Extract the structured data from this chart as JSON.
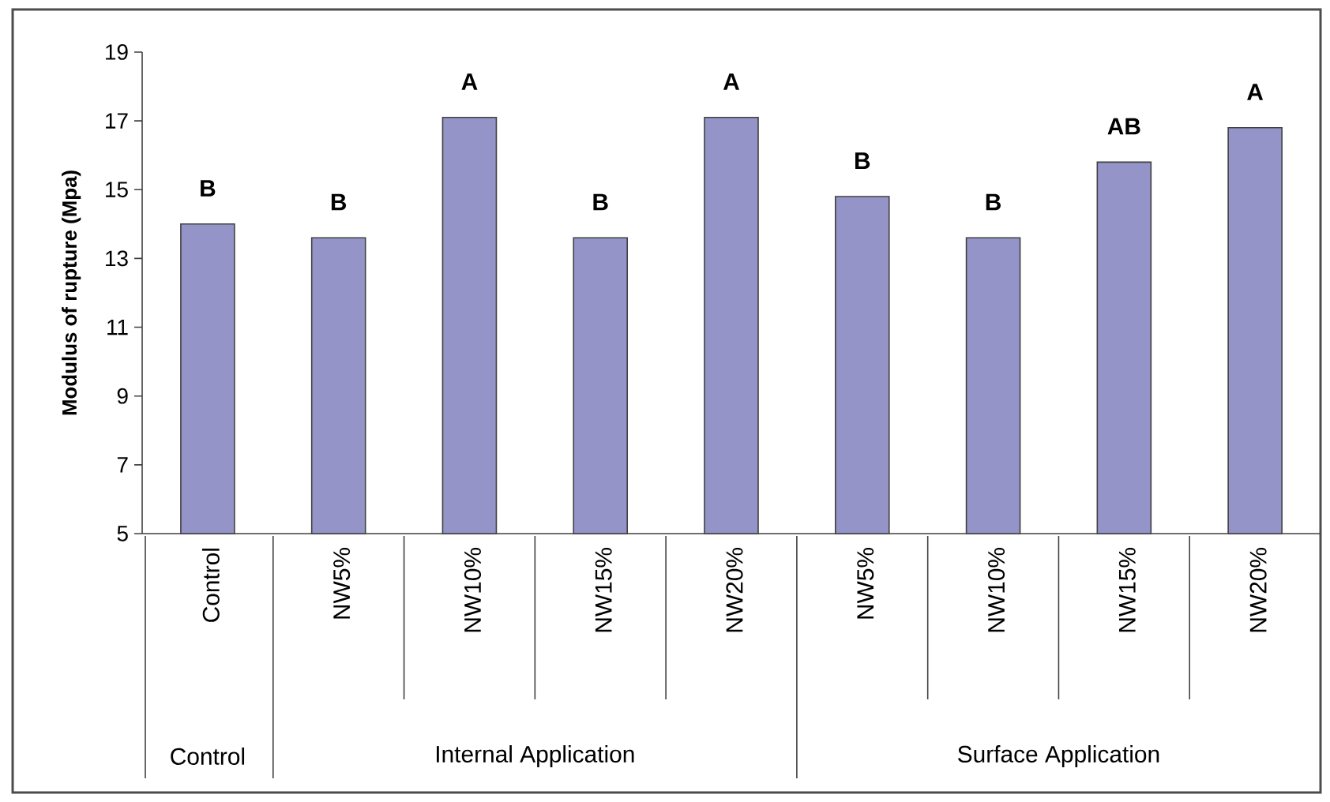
{
  "chart_data": {
    "type": "bar",
    "ylabel": "Modulus of rupture (Mpa)",
    "categories": [
      "Control",
      "NW5%",
      "NW10%",
      "NW15%",
      "NW20%",
      "NW5%",
      "NW10%",
      "NW15%",
      "NW20%"
    ],
    "values": [
      14.0,
      13.6,
      17.1,
      13.6,
      17.1,
      14.8,
      13.6,
      15.8,
      16.8
    ],
    "value_labels": [
      "B",
      "B",
      "A",
      "B",
      "A",
      "B",
      "B",
      "AB",
      "A"
    ],
    "color": "#9494c8",
    "ylim": [
      5,
      19
    ],
    "yticks": [
      5,
      7,
      9,
      11,
      13,
      15,
      17,
      19
    ],
    "annotations": [
      "Control",
      "Internal Application",
      "Surface Application"
    ]
  }
}
